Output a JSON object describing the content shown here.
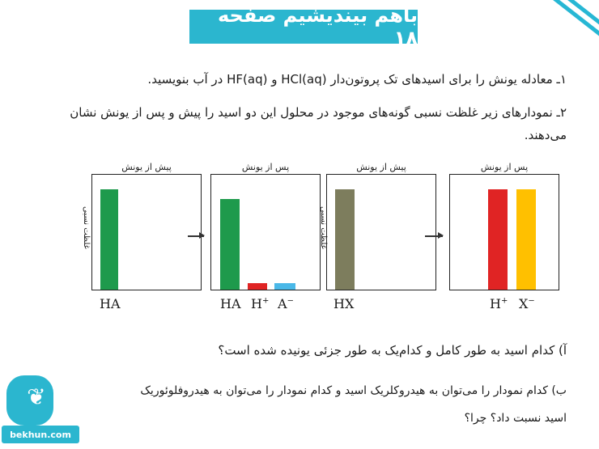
{
  "title": "باهم بیندیشیم صفحه ۱۸",
  "question1": "۱ـ معادله یونش را برای اسیدهای تک پروتون‌دار HCl(aq) و HF(aq) در آب بنویسید.",
  "question2": "۲ـ نمودارهای زیر غلظت نسبی گونه‌های موجود در محلول این دو اسید را پیش و پس از یونش نشان می‌دهند.",
  "panels": [
    {
      "caption": "پیش از یونش"
    },
    {
      "caption": "پس از یونش"
    },
    {
      "caption": "پیش از یونش"
    },
    {
      "caption": "پس از یونش"
    }
  ],
  "y_axis_label": "غلظت نسبی",
  "chart_data": [
    {
      "type": "bar",
      "title": "پیش از یونش",
      "ylabel": "غلظت نسبی",
      "categories": [
        "HA"
      ],
      "values": [
        1.0
      ],
      "colors": [
        "#1e9a4c"
      ]
    },
    {
      "type": "bar",
      "title": "پس از یونش",
      "categories": [
        "HA",
        "H+",
        "A−"
      ],
      "values": [
        0.85,
        0.06,
        0.06
      ],
      "colors": [
        "#1e9a4c",
        "#e02424",
        "#4ab8e8"
      ]
    },
    {
      "type": "bar",
      "title": "پیش از یونش",
      "ylabel": "غلظت نسبی",
      "categories": [
        "HX"
      ],
      "values": [
        1.0
      ],
      "colors": [
        "#7d7d5d"
      ]
    },
    {
      "type": "bar",
      "title": "پس از یونش",
      "categories": [
        "H+",
        "X−"
      ],
      "values": [
        0.99,
        0.99
      ],
      "colors": [
        "#e02424",
        "#ffc000"
      ]
    }
  ],
  "labels": {
    "ha1": "HA",
    "ha2": "HA",
    "h_plus": "H",
    "a_minus": "A",
    "hx": "HX",
    "h_plus2": "H",
    "x_minus": "X",
    "plus": "+",
    "minus": "−"
  },
  "question_a": "آ) کدام اسید به طور کامل و کدام‌یک به طور جزئی یونیده شده است؟",
  "question_b_line1": "ب) کدام نمودار را می‌توان به هیدروکلریک اسید و کدام نمودار را می‌توان به هیدروفلوئوریک",
  "question_b_line2": "اسید نسبت داد؟ چرا؟",
  "logo_text": "bekhun.com",
  "accent_color": "#2bb6cf"
}
